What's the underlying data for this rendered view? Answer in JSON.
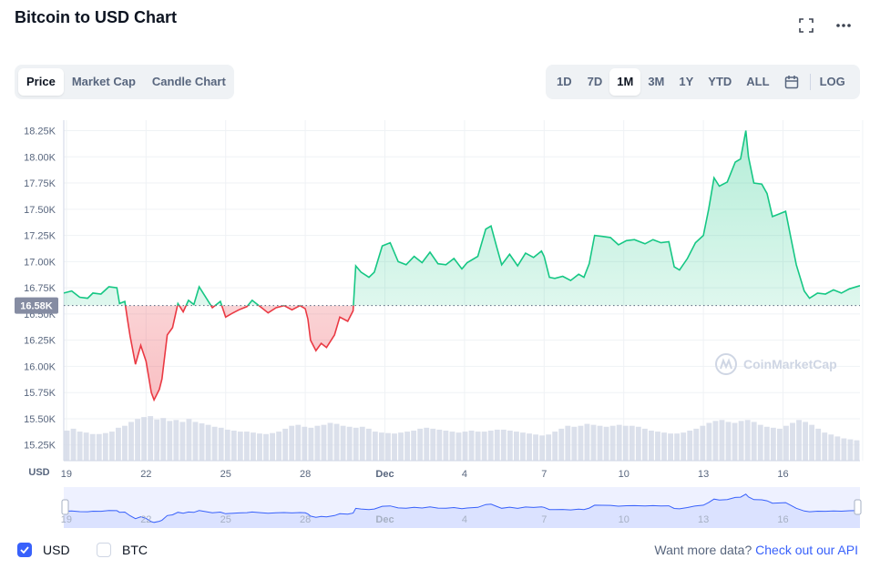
{
  "header": {
    "title": "Bitcoin to USD Chart"
  },
  "chart_tabs": [
    {
      "label": "Price",
      "active": true
    },
    {
      "label": "Market Cap",
      "active": false
    },
    {
      "label": "Candle Chart",
      "active": false
    }
  ],
  "range_tabs": [
    {
      "label": "1D",
      "active": false
    },
    {
      "label": "7D",
      "active": false
    },
    {
      "label": "1M",
      "active": true
    },
    {
      "label": "3M",
      "active": false
    },
    {
      "label": "1Y",
      "active": false
    },
    {
      "label": "YTD",
      "active": false
    },
    {
      "label": "ALL",
      "active": false
    }
  ],
  "log_label": "LOG",
  "icons": {
    "fullscreen": "fullscreen-icon",
    "more": "more-options-icon",
    "calendar": "calendar-icon"
  },
  "watermark": "CoinMarketCap",
  "footer": {
    "usd_label": "USD",
    "btc_label": "BTC",
    "usd_checked": true,
    "btc_checked": false,
    "api_text": "Want more data?",
    "api_link": "Check out our API"
  },
  "colors": {
    "up": "#16c784",
    "down": "#ea3943",
    "accent": "#3861fb",
    "volume": "#cfd6e4"
  },
  "chart_data": {
    "type": "area",
    "currency_label": "USD",
    "reference_value": 16580,
    "reference_label": "16.58K",
    "ylim": [
      15100,
      18350
    ],
    "y_ticks": [
      15250,
      15500,
      15750,
      16000,
      16250,
      16500,
      16750,
      17000,
      17250,
      17500,
      17750,
      18000,
      18250
    ],
    "y_tick_labels": [
      "15.25K",
      "15.50K",
      "15.75K",
      "16.00K",
      "16.25K",
      "16.50K",
      "16.75K",
      "17.00K",
      "17.25K",
      "17.50K",
      "17.75K",
      "18.00K",
      "18.25K"
    ],
    "x_ticks": [
      19,
      22,
      25,
      28,
      31,
      34,
      37,
      40,
      43,
      46,
      49
    ],
    "x_tick_labels": [
      "19",
      "22",
      "25",
      "28",
      "Dec",
      "4",
      "7",
      "10",
      "13",
      "16",
      ""
    ],
    "xlim": [
      18.9,
      48.9
    ],
    "series": [
      {
        "values": [
          [
            18.9,
            16700
          ],
          [
            19.2,
            16720
          ],
          [
            19.5,
            16660
          ],
          [
            19.8,
            16650
          ],
          [
            20.0,
            16700
          ],
          [
            20.3,
            16690
          ],
          [
            20.6,
            16760
          ],
          [
            20.9,
            16750
          ],
          [
            21.0,
            16600
          ],
          [
            21.2,
            16620
          ],
          [
            21.3,
            16450
          ],
          [
            21.4,
            16290
          ],
          [
            21.6,
            16020
          ],
          [
            21.8,
            16200
          ],
          [
            22.0,
            16050
          ],
          [
            22.2,
            15750
          ],
          [
            22.3,
            15680
          ],
          [
            22.5,
            15780
          ],
          [
            22.6,
            15880
          ],
          [
            22.8,
            16300
          ],
          [
            23.0,
            16370
          ],
          [
            23.2,
            16600
          ],
          [
            23.4,
            16520
          ],
          [
            23.6,
            16630
          ],
          [
            23.8,
            16590
          ],
          [
            24.0,
            16760
          ],
          [
            24.2,
            16680
          ],
          [
            24.5,
            16560
          ],
          [
            24.8,
            16620
          ],
          [
            25.0,
            16470
          ],
          [
            25.2,
            16500
          ],
          [
            25.5,
            16540
          ],
          [
            25.8,
            16570
          ],
          [
            26.0,
            16630
          ],
          [
            26.3,
            16570
          ],
          [
            26.6,
            16510
          ],
          [
            26.9,
            16560
          ],
          [
            27.2,
            16580
          ],
          [
            27.5,
            16540
          ],
          [
            27.8,
            16580
          ],
          [
            28.0,
            16550
          ],
          [
            28.1,
            16450
          ],
          [
            28.2,
            16250
          ],
          [
            28.4,
            16150
          ],
          [
            28.6,
            16220
          ],
          [
            28.8,
            16180
          ],
          [
            29.1,
            16300
          ],
          [
            29.3,
            16470
          ],
          [
            29.6,
            16430
          ],
          [
            29.8,
            16530
          ],
          [
            29.9,
            16960
          ],
          [
            30.1,
            16900
          ],
          [
            30.4,
            16850
          ],
          [
            30.6,
            16900
          ],
          [
            30.9,
            17150
          ],
          [
            31.2,
            17180
          ],
          [
            31.5,
            17000
          ],
          [
            31.8,
            16970
          ],
          [
            32.1,
            17050
          ],
          [
            32.4,
            16990
          ],
          [
            32.7,
            17090
          ],
          [
            33.0,
            16980
          ],
          [
            33.3,
            16970
          ],
          [
            33.6,
            17030
          ],
          [
            33.9,
            16930
          ],
          [
            34.1,
            16990
          ],
          [
            34.5,
            17050
          ],
          [
            34.8,
            17310
          ],
          [
            35.0,
            17340
          ],
          [
            35.2,
            17150
          ],
          [
            35.4,
            16970
          ],
          [
            35.7,
            17070
          ],
          [
            36.0,
            16960
          ],
          [
            36.3,
            17080
          ],
          [
            36.6,
            17040
          ],
          [
            36.9,
            17100
          ],
          [
            37.0,
            17050
          ],
          [
            37.2,
            16850
          ],
          [
            37.4,
            16840
          ],
          [
            37.7,
            16860
          ],
          [
            38.0,
            16820
          ],
          [
            38.3,
            16880
          ],
          [
            38.5,
            16850
          ],
          [
            38.7,
            16980
          ],
          [
            38.9,
            17250
          ],
          [
            39.2,
            17240
          ],
          [
            39.5,
            17230
          ],
          [
            39.8,
            17160
          ],
          [
            40.1,
            17200
          ],
          [
            40.4,
            17210
          ],
          [
            40.8,
            17170
          ],
          [
            41.1,
            17210
          ],
          [
            41.4,
            17180
          ],
          [
            41.7,
            17190
          ],
          [
            41.9,
            16950
          ],
          [
            42.1,
            16920
          ],
          [
            42.4,
            17030
          ],
          [
            42.7,
            17180
          ],
          [
            43.0,
            17250
          ],
          [
            43.2,
            17500
          ],
          [
            43.4,
            17800
          ],
          [
            43.6,
            17720
          ],
          [
            43.9,
            17760
          ],
          [
            44.2,
            17950
          ],
          [
            44.4,
            17980
          ],
          [
            44.6,
            18250
          ],
          [
            44.7,
            18000
          ],
          [
            44.9,
            17750
          ],
          [
            45.2,
            17740
          ],
          [
            45.4,
            17650
          ],
          [
            45.6,
            17430
          ],
          [
            45.8,
            17450
          ],
          [
            46.1,
            17480
          ],
          [
            46.3,
            17220
          ],
          [
            46.5,
            16970
          ],
          [
            46.8,
            16720
          ],
          [
            47.0,
            16650
          ],
          [
            47.3,
            16700
          ],
          [
            47.6,
            16690
          ],
          [
            47.9,
            16730
          ],
          [
            48.2,
            16700
          ],
          [
            48.5,
            16740
          ],
          [
            48.9,
            16770
          ]
        ]
      }
    ],
    "volume": [
      0.62,
      0.66,
      0.6,
      0.58,
      0.55,
      0.55,
      0.57,
      0.6,
      0.68,
      0.72,
      0.8,
      0.86,
      0.9,
      0.92,
      0.85,
      0.88,
      0.82,
      0.84,
      0.8,
      0.86,
      0.8,
      0.77,
      0.74,
      0.7,
      0.68,
      0.64,
      0.62,
      0.6,
      0.6,
      0.58,
      0.56,
      0.55,
      0.57,
      0.6,
      0.66,
      0.72,
      0.74,
      0.7,
      0.68,
      0.72,
      0.74,
      0.78,
      0.76,
      0.72,
      0.7,
      0.68,
      0.7,
      0.66,
      0.6,
      0.58,
      0.57,
      0.56,
      0.58,
      0.6,
      0.62,
      0.66,
      0.68,
      0.66,
      0.64,
      0.62,
      0.6,
      0.58,
      0.6,
      0.62,
      0.6,
      0.6,
      0.62,
      0.64,
      0.64,
      0.62,
      0.6,
      0.58,
      0.56,
      0.54,
      0.52,
      0.54,
      0.6,
      0.66,
      0.72,
      0.7,
      0.72,
      0.76,
      0.74,
      0.72,
      0.7,
      0.72,
      0.74,
      0.72,
      0.72,
      0.7,
      0.66,
      0.62,
      0.6,
      0.58,
      0.56,
      0.56,
      0.58,
      0.62,
      0.66,
      0.72,
      0.78,
      0.82,
      0.84,
      0.8,
      0.78,
      0.82,
      0.84,
      0.8,
      0.74,
      0.7,
      0.68,
      0.66,
      0.72,
      0.78,
      0.84,
      0.8,
      0.74,
      0.66,
      0.58,
      0.54,
      0.5,
      0.46,
      0.44,
      0.42
    ],
    "navigator_label_positions": [
      19,
      22,
      25,
      28,
      31,
      34,
      37,
      40,
      43,
      46
    ]
  }
}
